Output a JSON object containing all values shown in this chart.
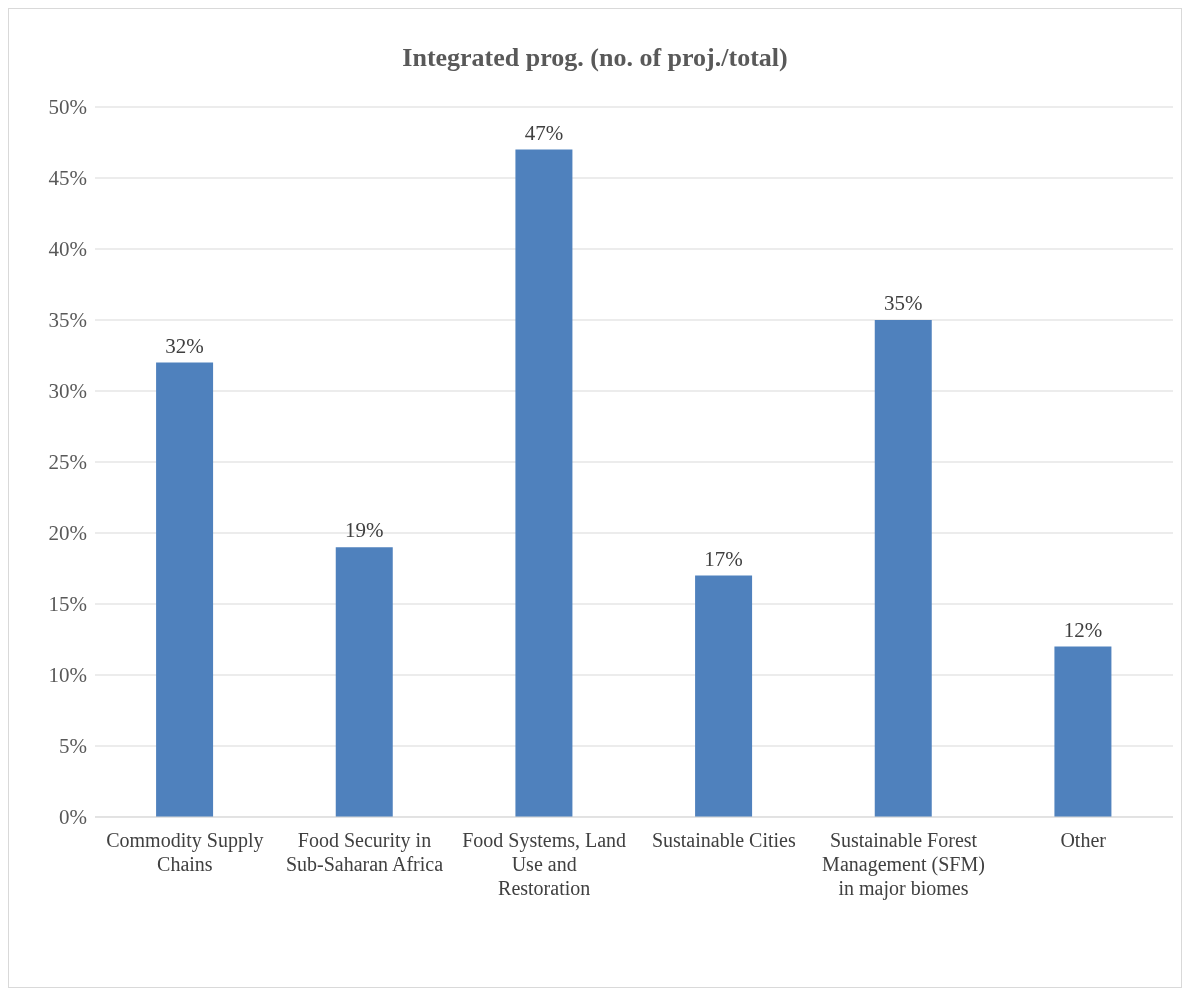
{
  "chart_data": {
    "type": "bar",
    "title": "Integrated prog. (no. of proj./total)",
    "categories": [
      "Commodity Supply Chains",
      "Food Security in Sub-Saharan Africa",
      "Food Systems, Land Use and Restoration",
      "Sustainable Cities",
      "Sustainable Forest Management (SFM) in major biomes",
      "Other"
    ],
    "values": [
      32,
      19,
      47,
      17,
      35,
      12
    ],
    "color": "#4f81bd",
    "ylim": [
      0,
      50
    ],
    "yticks": [
      {
        "value": 0,
        "label": "0%"
      },
      {
        "value": 5,
        "label": "5%"
      },
      {
        "value": 10,
        "label": "10%"
      },
      {
        "value": 15,
        "label": "15%"
      },
      {
        "value": 20,
        "label": "20%"
      },
      {
        "value": 25,
        "label": "25%"
      },
      {
        "value": 30,
        "label": "30%"
      },
      {
        "value": 35,
        "label": "35%"
      },
      {
        "value": 40,
        "label": "40%"
      },
      {
        "value": 45,
        "label": "45%"
      },
      {
        "value": 50,
        "label": "50%"
      }
    ],
    "value_labels": [
      "32%",
      "19%",
      "47%",
      "17%",
      "35%",
      "12%"
    ],
    "grid": "y"
  }
}
